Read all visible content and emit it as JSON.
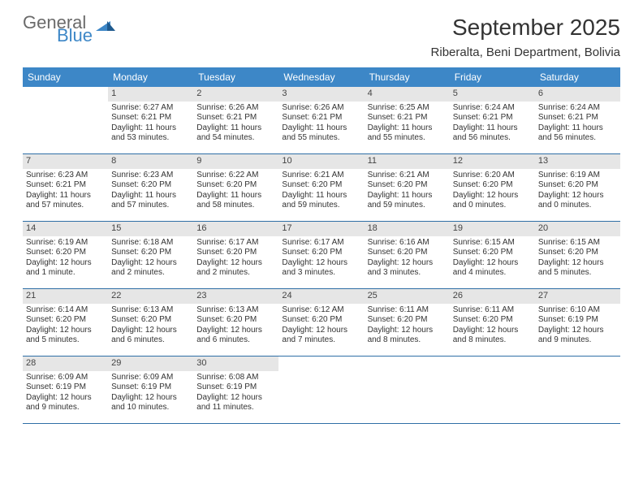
{
  "brand": {
    "line1": "General",
    "line2": "Blue",
    "text_color": "#6a6a6a",
    "accent_color": "#3d87c7"
  },
  "title": {
    "month": "September 2025",
    "location": "Riberalta, Beni Department, Bolivia",
    "month_fontsize": 28,
    "loc_fontsize": 15
  },
  "colors": {
    "header_bg": "#3d87c7",
    "header_text": "#ffffff",
    "daynum_bg": "#e6e6e6",
    "row_border": "#2f6fa6",
    "page_bg": "#ffffff",
    "body_text": "#333333"
  },
  "fonts": {
    "dow_fontsize": 12,
    "daynum_fontsize": 11,
    "body_fontsize": 10
  },
  "days_of_week": [
    "Sunday",
    "Monday",
    "Tuesday",
    "Wednesday",
    "Thursday",
    "Friday",
    "Saturday"
  ],
  "weeks": [
    [
      {
        "n": "",
        "sunrise": "",
        "sunset": "",
        "daylight": ""
      },
      {
        "n": "1",
        "sunrise": "Sunrise: 6:27 AM",
        "sunset": "Sunset: 6:21 PM",
        "daylight": "Daylight: 11 hours and 53 minutes."
      },
      {
        "n": "2",
        "sunrise": "Sunrise: 6:26 AM",
        "sunset": "Sunset: 6:21 PM",
        "daylight": "Daylight: 11 hours and 54 minutes."
      },
      {
        "n": "3",
        "sunrise": "Sunrise: 6:26 AM",
        "sunset": "Sunset: 6:21 PM",
        "daylight": "Daylight: 11 hours and 55 minutes."
      },
      {
        "n": "4",
        "sunrise": "Sunrise: 6:25 AM",
        "sunset": "Sunset: 6:21 PM",
        "daylight": "Daylight: 11 hours and 55 minutes."
      },
      {
        "n": "5",
        "sunrise": "Sunrise: 6:24 AM",
        "sunset": "Sunset: 6:21 PM",
        "daylight": "Daylight: 11 hours and 56 minutes."
      },
      {
        "n": "6",
        "sunrise": "Sunrise: 6:24 AM",
        "sunset": "Sunset: 6:21 PM",
        "daylight": "Daylight: 11 hours and 56 minutes."
      }
    ],
    [
      {
        "n": "7",
        "sunrise": "Sunrise: 6:23 AM",
        "sunset": "Sunset: 6:21 PM",
        "daylight": "Daylight: 11 hours and 57 minutes."
      },
      {
        "n": "8",
        "sunrise": "Sunrise: 6:23 AM",
        "sunset": "Sunset: 6:20 PM",
        "daylight": "Daylight: 11 hours and 57 minutes."
      },
      {
        "n": "9",
        "sunrise": "Sunrise: 6:22 AM",
        "sunset": "Sunset: 6:20 PM",
        "daylight": "Daylight: 11 hours and 58 minutes."
      },
      {
        "n": "10",
        "sunrise": "Sunrise: 6:21 AM",
        "sunset": "Sunset: 6:20 PM",
        "daylight": "Daylight: 11 hours and 59 minutes."
      },
      {
        "n": "11",
        "sunrise": "Sunrise: 6:21 AM",
        "sunset": "Sunset: 6:20 PM",
        "daylight": "Daylight: 11 hours and 59 minutes."
      },
      {
        "n": "12",
        "sunrise": "Sunrise: 6:20 AM",
        "sunset": "Sunset: 6:20 PM",
        "daylight": "Daylight: 12 hours and 0 minutes."
      },
      {
        "n": "13",
        "sunrise": "Sunrise: 6:19 AM",
        "sunset": "Sunset: 6:20 PM",
        "daylight": "Daylight: 12 hours and 0 minutes."
      }
    ],
    [
      {
        "n": "14",
        "sunrise": "Sunrise: 6:19 AM",
        "sunset": "Sunset: 6:20 PM",
        "daylight": "Daylight: 12 hours and 1 minute."
      },
      {
        "n": "15",
        "sunrise": "Sunrise: 6:18 AM",
        "sunset": "Sunset: 6:20 PM",
        "daylight": "Daylight: 12 hours and 2 minutes."
      },
      {
        "n": "16",
        "sunrise": "Sunrise: 6:17 AM",
        "sunset": "Sunset: 6:20 PM",
        "daylight": "Daylight: 12 hours and 2 minutes."
      },
      {
        "n": "17",
        "sunrise": "Sunrise: 6:17 AM",
        "sunset": "Sunset: 6:20 PM",
        "daylight": "Daylight: 12 hours and 3 minutes."
      },
      {
        "n": "18",
        "sunrise": "Sunrise: 6:16 AM",
        "sunset": "Sunset: 6:20 PM",
        "daylight": "Daylight: 12 hours and 3 minutes."
      },
      {
        "n": "19",
        "sunrise": "Sunrise: 6:15 AM",
        "sunset": "Sunset: 6:20 PM",
        "daylight": "Daylight: 12 hours and 4 minutes."
      },
      {
        "n": "20",
        "sunrise": "Sunrise: 6:15 AM",
        "sunset": "Sunset: 6:20 PM",
        "daylight": "Daylight: 12 hours and 5 minutes."
      }
    ],
    [
      {
        "n": "21",
        "sunrise": "Sunrise: 6:14 AM",
        "sunset": "Sunset: 6:20 PM",
        "daylight": "Daylight: 12 hours and 5 minutes."
      },
      {
        "n": "22",
        "sunrise": "Sunrise: 6:13 AM",
        "sunset": "Sunset: 6:20 PM",
        "daylight": "Daylight: 12 hours and 6 minutes."
      },
      {
        "n": "23",
        "sunrise": "Sunrise: 6:13 AM",
        "sunset": "Sunset: 6:20 PM",
        "daylight": "Daylight: 12 hours and 6 minutes."
      },
      {
        "n": "24",
        "sunrise": "Sunrise: 6:12 AM",
        "sunset": "Sunset: 6:20 PM",
        "daylight": "Daylight: 12 hours and 7 minutes."
      },
      {
        "n": "25",
        "sunrise": "Sunrise: 6:11 AM",
        "sunset": "Sunset: 6:20 PM",
        "daylight": "Daylight: 12 hours and 8 minutes."
      },
      {
        "n": "26",
        "sunrise": "Sunrise: 6:11 AM",
        "sunset": "Sunset: 6:20 PM",
        "daylight": "Daylight: 12 hours and 8 minutes."
      },
      {
        "n": "27",
        "sunrise": "Sunrise: 6:10 AM",
        "sunset": "Sunset: 6:19 PM",
        "daylight": "Daylight: 12 hours and 9 minutes."
      }
    ],
    [
      {
        "n": "28",
        "sunrise": "Sunrise: 6:09 AM",
        "sunset": "Sunset: 6:19 PM",
        "daylight": "Daylight: 12 hours and 9 minutes."
      },
      {
        "n": "29",
        "sunrise": "Sunrise: 6:09 AM",
        "sunset": "Sunset: 6:19 PM",
        "daylight": "Daylight: 12 hours and 10 minutes."
      },
      {
        "n": "30",
        "sunrise": "Sunrise: 6:08 AM",
        "sunset": "Sunset: 6:19 PM",
        "daylight": "Daylight: 12 hours and 11 minutes."
      },
      {
        "n": "",
        "sunrise": "",
        "sunset": "",
        "daylight": ""
      },
      {
        "n": "",
        "sunrise": "",
        "sunset": "",
        "daylight": ""
      },
      {
        "n": "",
        "sunrise": "",
        "sunset": "",
        "daylight": ""
      },
      {
        "n": "",
        "sunrise": "",
        "sunset": "",
        "daylight": ""
      }
    ]
  ]
}
